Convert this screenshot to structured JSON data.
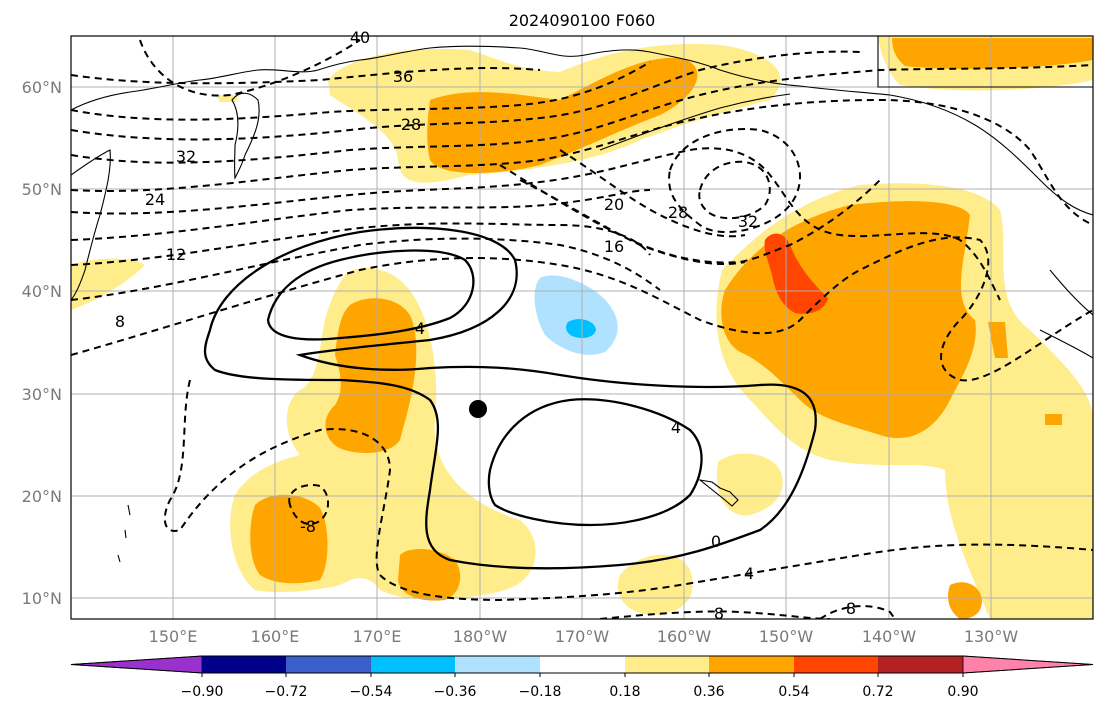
{
  "title": "2024090100 F060",
  "lat_labels": [
    "60°N",
    "50°N",
    "40°N",
    "30°N",
    "20°N",
    "10°N"
  ],
  "lon_labels": [
    "150°E",
    "160°E",
    "170°E",
    "180°W",
    "170°W",
    "160°W",
    "150°W",
    "140°W",
    "130°W"
  ],
  "contour_labels": [
    "40",
    "36",
    "32",
    "28",
    "24",
    "12",
    "8",
    "20",
    "16",
    "28",
    "32",
    "4",
    "4",
    "0",
    "4",
    "8",
    "8",
    "-8"
  ],
  "colorbar": {
    "ticks": [
      "−0.90",
      "−0.72",
      "−0.54",
      "−0.36",
      "−0.18",
      "0.18",
      "0.36",
      "0.54",
      "0.72",
      "0.90"
    ],
    "colors": [
      "#9932cc",
      "#00008b",
      "#3a5fcd",
      "#00bfff",
      "#b0e2ff",
      "#ffffff",
      "#ffec8b",
      "#ffa500",
      "#ff4500",
      "#b22222",
      "#ff82ab"
    ]
  },
  "marker": "storm-center-dot"
}
